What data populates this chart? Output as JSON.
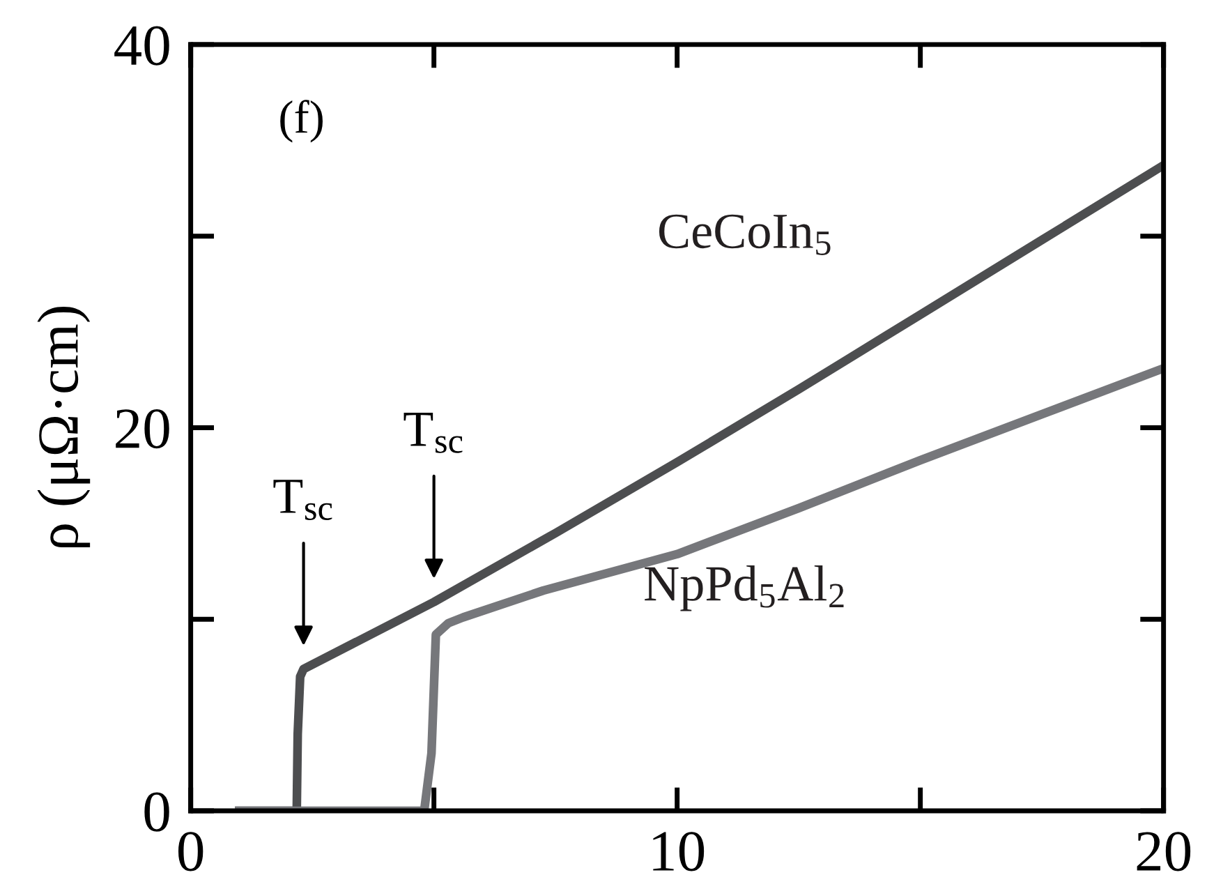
{
  "chart_data": {
    "type": "line",
    "ylabel": "ρ (μΩ·cm)",
    "xlim": [
      0,
      20
    ],
    "ylim": [
      0,
      40
    ],
    "xticks": [
      0,
      10,
      20
    ],
    "yticks": [
      0,
      20,
      40
    ],
    "grid": false,
    "legend": false,
    "marker": "none",
    "line_style": "solid",
    "series": [
      {
        "name": "CeCoIn$_{5}$",
        "color": "#4d4e50",
        "x": [
          1.0,
          2.18,
          2.2,
          2.25,
          2.32,
          5.0,
          7.5,
          10,
          12.5,
          15,
          17.5,
          20
        ],
        "values": [
          0,
          0,
          4.0,
          7.0,
          7.4,
          10.9,
          14.5,
          18.2,
          22.0,
          25.9,
          29.8,
          33.7
        ]
      },
      {
        "name": "NpPd$_{5}$Al$_{2}$",
        "color": "#76777b",
        "x": [
          1.0,
          2.5,
          4.8,
          4.95,
          5.04,
          5.3,
          5.6,
          7.25,
          10,
          12.5,
          15,
          17.5,
          20
        ],
        "values": [
          0,
          0,
          0,
          3.0,
          9.2,
          9.8,
          10.1,
          11.5,
          13.4,
          15.8,
          18.3,
          20.7,
          23.1
        ]
      }
    ],
    "annotations": [
      "(f)",
      {
        "text": "T$_{sc}$",
        "x": 2.32,
        "y": 7.4
      },
      {
        "text": "T$_{sc}$",
        "x": 5.0,
        "y": 10.9
      }
    ]
  }
}
